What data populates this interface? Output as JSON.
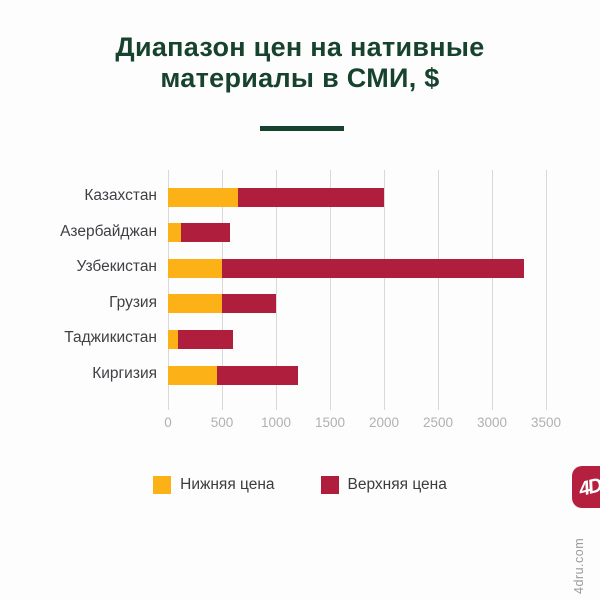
{
  "header": {
    "title_line1": "Диапазон цен на нативные",
    "title_line2": "материалы в СМИ, $",
    "title_color": "#17432e"
  },
  "chart_data": {
    "type": "bar",
    "orientation": "horizontal",
    "stacked": true,
    "title": "Диапазон цен на нативные материалы в СМИ, $",
    "categories": [
      "Казахстан",
      "Азербайджан",
      "Узбекистан",
      "Грузия",
      "Таджикистан",
      "Киргизия"
    ],
    "series": [
      {
        "name": "Нижняя цена",
        "color": "#fcb216",
        "values": [
          650,
          120,
          500,
          500,
          90,
          450
        ]
      },
      {
        "name": "Верхняя цена",
        "color": "#b01e3d",
        "values": [
          2000,
          570,
          3300,
          1000,
          600,
          1200
        ]
      }
    ],
    "value_note": "yellow segment = 0..lower price, red segment = lower..upper price",
    "xlim": [
      0,
      3500
    ],
    "xticks": [
      "0",
      "500",
      "1000",
      "1500",
      "2000",
      "2500",
      "3000",
      "3500"
    ],
    "grid": true,
    "gridline_color": "#d9d9d9",
    "axis_label_color": "#b2b0b0",
    "legend_position": "bottom"
  },
  "branding": {
    "logo_text": "4D",
    "logo_color": "#b5203f",
    "watermark": "4dru.com"
  }
}
